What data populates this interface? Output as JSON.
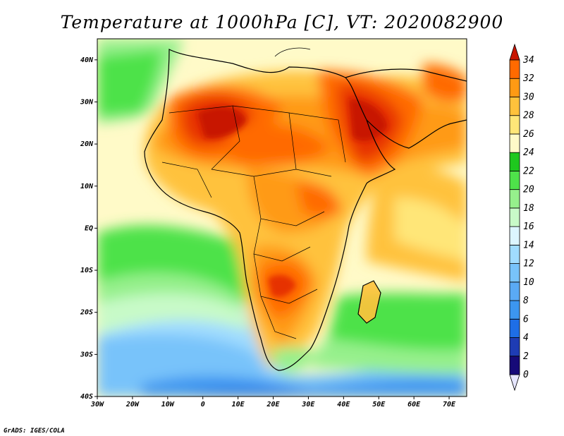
{
  "title": "Temperature at 1000hPa [C], VT: 2020082900",
  "footer": "GrADS: IGES/COLA",
  "map": {
    "lon_range": [
      -30,
      75
    ],
    "lat_range": [
      -40,
      45
    ],
    "lon_ticks": [
      {
        "value": -30,
        "label": "30W"
      },
      {
        "value": -20,
        "label": "20W"
      },
      {
        "value": -10,
        "label": "10W"
      },
      {
        "value": 0,
        "label": "0"
      },
      {
        "value": 10,
        "label": "10E"
      },
      {
        "value": 20,
        "label": "20E"
      },
      {
        "value": 30,
        "label": "30E"
      },
      {
        "value": 40,
        "label": "40E"
      },
      {
        "value": 50,
        "label": "50E"
      },
      {
        "value": 60,
        "label": "60E"
      },
      {
        "value": 70,
        "label": "70E"
      }
    ],
    "lat_ticks": [
      {
        "value": 40,
        "label": "40N"
      },
      {
        "value": 30,
        "label": "30N"
      },
      {
        "value": 20,
        "label": "20N"
      },
      {
        "value": 10,
        "label": "10N"
      },
      {
        "value": 0,
        "label": "EQ"
      },
      {
        "value": -10,
        "label": "10S"
      },
      {
        "value": -20,
        "label": "20S"
      },
      {
        "value": -30,
        "label": "30S"
      },
      {
        "value": -40,
        "label": "40S"
      }
    ]
  },
  "colorbar": {
    "levels": [
      "0",
      "2",
      "4",
      "6",
      "8",
      "10",
      "12",
      "14",
      "16",
      "18",
      "20",
      "22",
      "24",
      "26",
      "28",
      "30",
      "32",
      "34"
    ],
    "colors": [
      "#160a78",
      "#1e3cb4",
      "#1e6ee6",
      "#3c96f0",
      "#5aaaf5",
      "#78c3fa",
      "#a0dcff",
      "#dcf5ff",
      "#c8fac8",
      "#96f08c",
      "#4ee24a",
      "#1ec81e",
      "#fffac8",
      "#ffe678",
      "#ffc23c",
      "#ff9a14",
      "#ff6a00",
      "#e63200",
      "#c81400"
    ]
  }
}
